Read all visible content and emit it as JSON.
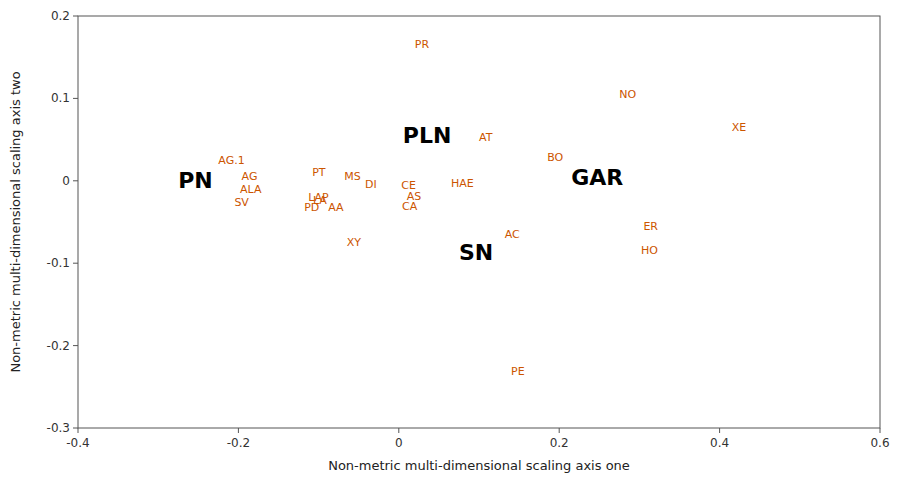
{
  "chart_data": {
    "type": "scatter",
    "x_label": "Non-metric multi-dimensional scaling axis one",
    "y_label": "Non-metric multi-dimensional scaling axis two",
    "xlim": [
      -0.4,
      0.6
    ],
    "ylim": [
      -0.3,
      0.2
    ],
    "xticks": [
      -0.4,
      -0.2,
      0,
      0.2,
      0.4,
      0.6
    ],
    "yticks": [
      -0.3,
      -0.2,
      -0.1,
      0,
      0.1,
      0.2
    ],
    "grid": false,
    "series": [
      {
        "color": "#cc5500",
        "labels": [
          "PR",
          "NO",
          "XE",
          "AT",
          "BO",
          "AG.1",
          "AG",
          "ALA",
          "SV",
          "PT",
          "MS",
          "DI",
          "LAP",
          "LA",
          "PD",
          "AA",
          "CE",
          "AS",
          "CA",
          "HAE",
          "XY",
          "AC",
          "HO",
          "ER",
          "PE"
        ],
        "x": [
          0.02,
          0.275,
          0.415,
          0.1,
          0.185,
          -0.225,
          -0.196,
          -0.198,
          -0.205,
          -0.108,
          -0.068,
          -0.042,
          -0.113,
          -0.107,
          -0.118,
          -0.088,
          0.003,
          0.01,
          0.004,
          0.065,
          -0.065,
          0.132,
          0.302,
          0.305,
          0.14
        ],
        "values": [
          0.165,
          0.105,
          0.065,
          0.053,
          0.028,
          0.025,
          0.005,
          -0.011,
          -0.026,
          0.01,
          0.005,
          -0.004,
          -0.02,
          -0.024,
          -0.032,
          -0.032,
          -0.006,
          -0.019,
          -0.031,
          -0.003,
          -0.075,
          -0.065,
          -0.085,
          -0.055,
          -0.232
        ]
      },
      {
        "color": "black",
        "labels": [
          "PLN",
          "GAR",
          "PN",
          "SN"
        ],
        "x": [
          0.005,
          0.215,
          -0.275,
          0.075
        ],
        "values": [
          0.055,
          0.004,
          0.0,
          -0.087
        ]
      }
    ]
  }
}
